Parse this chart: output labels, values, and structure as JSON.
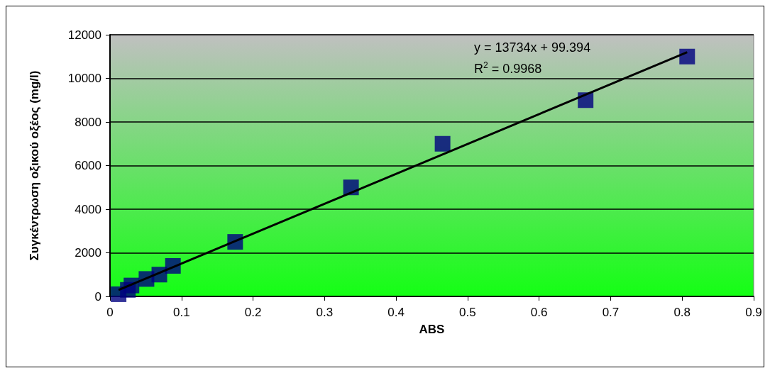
{
  "chart_data": {
    "type": "scatter",
    "xlabel": "ABS",
    "ylabel": "Συγκέντρωση οξικού οξέος (mg/l)",
    "xlim": [
      0,
      0.9
    ],
    "xticks": [
      0,
      0.1,
      0.2,
      0.3,
      0.4,
      0.5,
      0.6,
      0.7,
      0.8,
      0.9
    ],
    "ylim": [
      0,
      12000
    ],
    "yticks": [
      0,
      2000,
      4000,
      6000,
      8000,
      10000,
      12000
    ],
    "grid": "y",
    "marker": "square",
    "series": [
      {
        "color": "#000080",
        "x": [
          0.012,
          0.025,
          0.03,
          0.051,
          0.069,
          0.088,
          0.175,
          0.337,
          0.465,
          0.665,
          0.807
        ],
        "values": [
          100,
          300,
          500,
          800,
          1000,
          1400,
          2500,
          5000,
          7000,
          9000,
          11000
        ]
      },
      {
        "type": "line",
        "color": "#000000",
        "line_style": "solid",
        "marker": "none",
        "x": [
          0.012,
          0.807
        ],
        "values": [
          300,
          11200
        ]
      }
    ],
    "annotations": [
      "y = 13734x + 99.394",
      "R$^{2}$ = 0.9968"
    ]
  }
}
